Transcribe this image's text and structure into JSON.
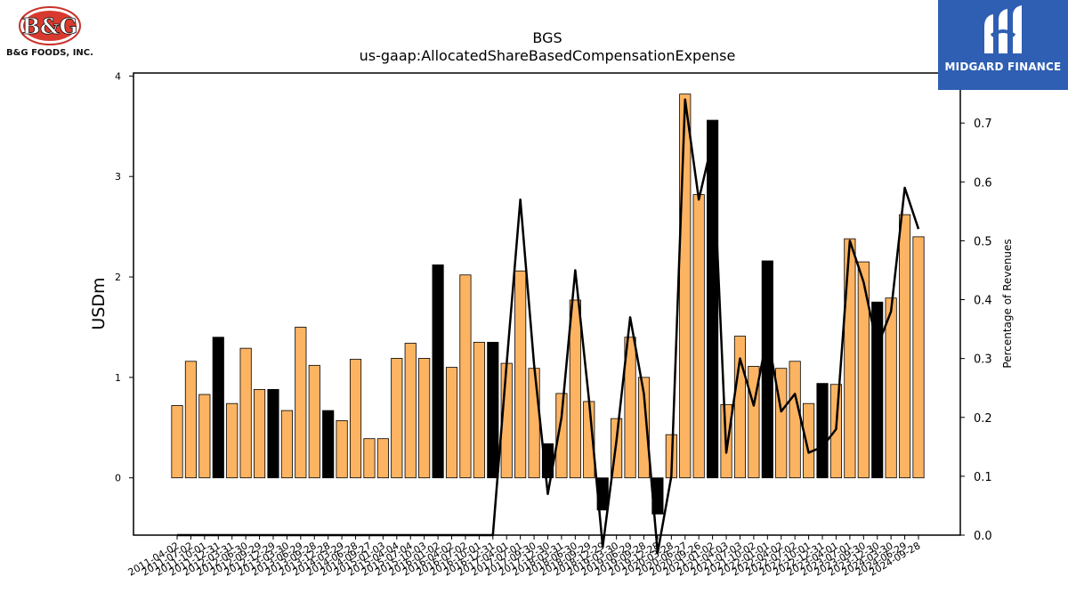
{
  "logos": {
    "left_text": "B&G FOODS, INC.",
    "left_mark": "B&G",
    "right_text": "MIDGARD FINANCE"
  },
  "chart_data": {
    "type": "bar",
    "title": "BGS",
    "subtitle": "us-gaap:AllocatedShareBasedCompensationExpense",
    "ylabel": "USDm",
    "y2label": "Percentage of Revenues",
    "ylim": [
      -0.57,
      4.03
    ],
    "y2lim": [
      0.0,
      0.785
    ],
    "yticks": [
      0,
      1,
      2,
      3,
      4
    ],
    "y2ticks": [
      0.0,
      0.1,
      0.2,
      0.3,
      0.4,
      0.5,
      0.6,
      0.7
    ],
    "xtick_labels": [
      "2011-04-02",
      "2011-07-02",
      "2011-10-01",
      "2011-12-31",
      "2012-03-31",
      "2012-06-30",
      "2012-09-29",
      "2012-12-29",
      "2013-03-30",
      "2013-06-29",
      "2013-09-28",
      "2013-12-28",
      "2014-03-29",
      "2014-06-28",
      "2014-09-27",
      "2015-01-03",
      "2015-04-04",
      "2015-07-04",
      "2015-10-03",
      "2016-01-02",
      "2016-04-02",
      "2016-07-02",
      "2016-10-01",
      "2016-12-31",
      "2017-04-01",
      "2017-07-01",
      "2017-09-30",
      "2017-12-30",
      "2018-03-31",
      "2018-06-30",
      "2018-09-29",
      "2018-12-29",
      "2019-03-30",
      "2019-06-29",
      "2019-09-28",
      "2019-12-28",
      "2020-03-28",
      "2020-06-27",
      "2020-09-26",
      "2021-01-02",
      "2021-04-03",
      "2021-07-03",
      "2021-10-02",
      "2022-01-01",
      "2022-04-02",
      "2022-07-02",
      "2022-10-01",
      "2022-12-31",
      "2023-04-01",
      "2023-07-01",
      "2023-09-30",
      "2023-12-30",
      "2024-03-30",
      "2024-06-29",
      "2024-09-28"
    ],
    "values": [
      0.72,
      1.16,
      0.83,
      1.4,
      0.74,
      1.29,
      0.88,
      0.88,
      0.67,
      1.5,
      1.12,
      0.67,
      0.57,
      1.18,
      0.39,
      0.39,
      1.19,
      1.34,
      1.19,
      2.12,
      1.1,
      2.02,
      1.35,
      1.35,
      1.14,
      2.06,
      1.09,
      0.34,
      0.84,
      1.77,
      0.76,
      -0.32,
      0.59,
      1.4,
      1.0,
      -0.36,
      0.43,
      3.82,
      2.82,
      3.56,
      0.73,
      1.41,
      1.11,
      2.16,
      1.09,
      1.16,
      0.74,
      0.94,
      0.93,
      2.38,
      2.15,
      1.75,
      1.79,
      2.62,
      2.4
    ],
    "highlight": [
      false,
      false,
      false,
      true,
      false,
      false,
      false,
      true,
      false,
      false,
      false,
      true,
      false,
      false,
      false,
      false,
      false,
      false,
      false,
      true,
      false,
      false,
      false,
      true,
      false,
      false,
      false,
      true,
      false,
      false,
      false,
      true,
      false,
      false,
      false,
      true,
      false,
      false,
      false,
      true,
      false,
      false,
      false,
      true,
      false,
      false,
      false,
      true,
      false,
      false,
      false,
      true,
      false,
      false,
      false
    ],
    "pct_revenue": [
      0,
      0,
      0,
      0,
      0,
      0,
      0,
      0,
      0,
      0,
      0,
      0,
      0,
      0,
      0,
      0,
      0,
      0,
      0,
      0,
      0,
      0,
      0,
      0,
      0.29,
      0.57,
      0.29,
      0.07,
      0.2,
      0.45,
      0.23,
      -0.02,
      0.16,
      0.37,
      0.24,
      -0.03,
      0.1,
      0.74,
      0.57,
      0.67,
      0.14,
      0.3,
      0.22,
      0.34,
      0.21,
      0.24,
      0.14,
      0.15,
      0.18,
      0.5,
      0.43,
      0.32,
      0.38,
      0.59,
      0.52
    ],
    "colors": {
      "bar": "#fdb462",
      "highlight": "#000000",
      "line": "#000000"
    },
    "grid": false
  }
}
